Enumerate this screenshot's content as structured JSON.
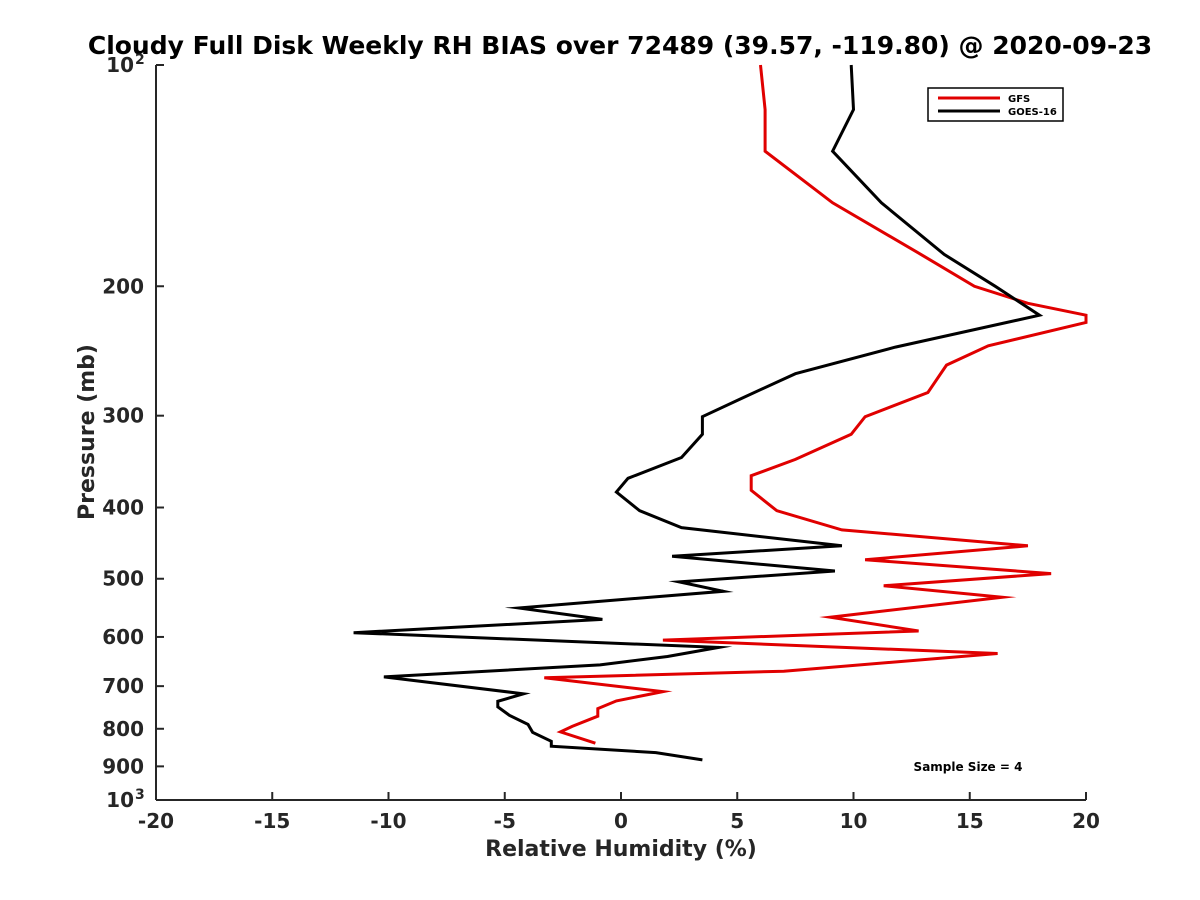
{
  "chart_data": {
    "type": "line",
    "title": "Cloudy Full Disk Weekly RH BIAS over 72489 (39.57, -119.80) @ 2020-09-23",
    "xlabel": "Relative Humidity (%)",
    "ylabel": "Pressure (mb)",
    "xlim": [
      -20,
      20
    ],
    "ylim": [
      100,
      1000
    ],
    "y_scale": "log",
    "y_reversed": true,
    "grid": false,
    "legend_position": "top-right",
    "x_ticks": [
      "-20",
      "-15",
      "-10",
      "-5",
      "0",
      "5",
      "10",
      "15",
      "20"
    ],
    "x_tick_values": [
      -20,
      -15,
      -10,
      -5,
      0,
      5,
      10,
      15,
      20
    ],
    "y_ticks": [
      {
        "value": 100,
        "label": "10",
        "sup": "2"
      },
      {
        "value": 200,
        "label": "200",
        "sup": ""
      },
      {
        "value": 300,
        "label": "300",
        "sup": ""
      },
      {
        "value": 400,
        "label": "400",
        "sup": ""
      },
      {
        "value": 500,
        "label": "500",
        "sup": ""
      },
      {
        "value": 600,
        "label": "600",
        "sup": ""
      },
      {
        "value": 700,
        "label": "700",
        "sup": ""
      },
      {
        "value": 800,
        "label": "800",
        "sup": ""
      },
      {
        "value": 900,
        "label": "900",
        "sup": ""
      },
      {
        "value": 1000,
        "label": "10",
        "sup": "3"
      }
    ],
    "annotation": "Sample Size = 4",
    "series": [
      {
        "name": "GFS",
        "color": "#e00000",
        "points": [
          [
            6.0,
            100
          ],
          [
            6.2,
            115
          ],
          [
            6.2,
            131
          ],
          [
            9.1,
            154
          ],
          [
            12.9,
            181
          ],
          [
            15.2,
            200
          ],
          [
            17.5,
            211
          ],
          [
            20.0,
            219
          ],
          [
            20.0,
            224
          ],
          [
            15.8,
            241
          ],
          [
            14.0,
            256
          ],
          [
            13.2,
            279
          ],
          [
            10.5,
            301
          ],
          [
            9.9,
            318
          ],
          [
            7.5,
            344
          ],
          [
            5.6,
            362
          ],
          [
            5.6,
            379
          ],
          [
            6.7,
            404
          ],
          [
            9.5,
            429
          ],
          [
            17.5,
            451
          ],
          [
            10.5,
            471
          ],
          [
            18.5,
            492
          ],
          [
            11.3,
            511
          ],
          [
            16.4,
            530
          ],
          [
            9.0,
            564
          ],
          [
            12.8,
            589
          ],
          [
            1.8,
            606
          ],
          [
            16.2,
            632
          ],
          [
            7.0,
            668
          ],
          [
            -3.3,
            682
          ],
          [
            1.8,
            712
          ],
          [
            -0.2,
            733
          ],
          [
            -1.0,
            751
          ],
          [
            -1.0,
            769
          ],
          [
            -2.1,
            794
          ],
          [
            -2.6,
            808
          ],
          [
            -1.1,
            837
          ]
        ]
      },
      {
        "name": "GOES-16",
        "color": "#000000",
        "points": [
          [
            9.9,
            100
          ],
          [
            10.0,
            115
          ],
          [
            9.1,
            131
          ],
          [
            11.2,
            154
          ],
          [
            13.9,
            181
          ],
          [
            16.1,
            200
          ],
          [
            18.0,
            219
          ],
          [
            11.8,
            242
          ],
          [
            7.5,
            263
          ],
          [
            5.2,
            284
          ],
          [
            3.5,
            301
          ],
          [
            3.5,
            318
          ],
          [
            2.6,
            342
          ],
          [
            0.3,
            365
          ],
          [
            -0.2,
            381
          ],
          [
            0.8,
            404
          ],
          [
            2.6,
            426
          ],
          [
            9.5,
            451
          ],
          [
            2.2,
            466
          ],
          [
            9.2,
            488
          ],
          [
            2.5,
            505
          ],
          [
            4.4,
            520
          ],
          [
            -4.4,
            548
          ],
          [
            -0.8,
            568
          ],
          [
            -11.5,
            592
          ],
          [
            4.2,
            620
          ],
          [
            2.0,
            638
          ],
          [
            -0.9,
            655
          ],
          [
            -10.2,
            680
          ],
          [
            -4.2,
            717
          ],
          [
            -5.3,
            734
          ],
          [
            -5.3,
            747
          ],
          [
            -4.8,
            767
          ],
          [
            -4.0,
            789
          ],
          [
            -3.8,
            809
          ],
          [
            -3.0,
            832
          ],
          [
            -3.0,
            845
          ],
          [
            1.5,
            862
          ],
          [
            3.5,
            882
          ]
        ]
      }
    ]
  }
}
